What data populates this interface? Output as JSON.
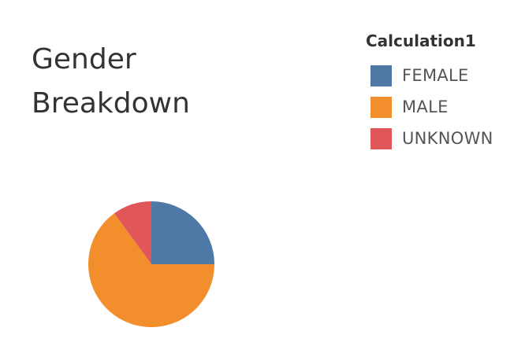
{
  "chart_data": {
    "type": "pie",
    "title_lines": [
      "Gender",
      "Breakdown"
    ],
    "legend_title": "Calculation1",
    "legend_position": "top-right",
    "categories": [
      "FEMALE",
      "MALE",
      "UNKNOWN"
    ],
    "values": [
      25,
      65,
      10
    ],
    "colors": [
      "#4e79a7",
      "#f28e2b",
      "#e15759"
    ],
    "start_angle_deg": 0,
    "direction": "clockwise"
  }
}
